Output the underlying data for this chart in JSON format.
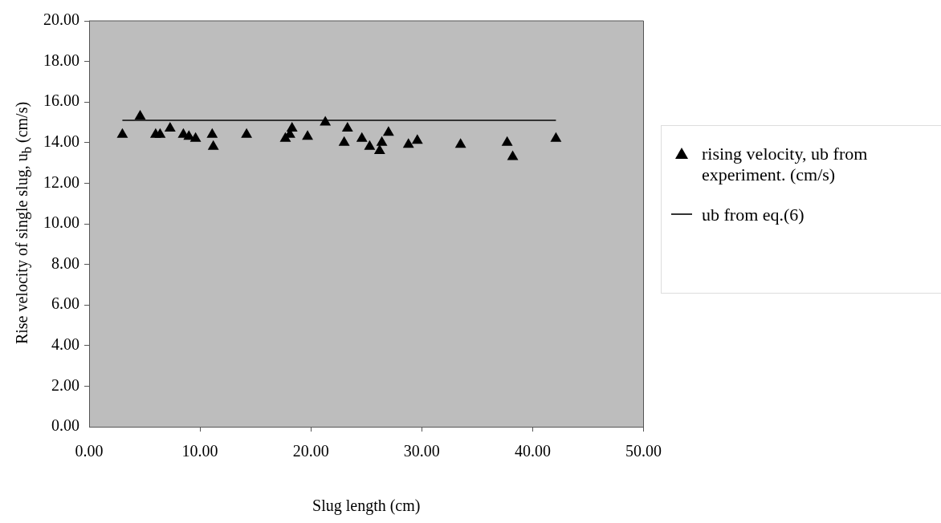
{
  "chart_data": {
    "type": "scatter",
    "xlabel": "Slug length (cm)",
    "ylabel": "Rise velocity of single slug, u$_{b}$ (cm/s)",
    "xlim": [
      0,
      50
    ],
    "xticks": [
      {
        "value": 0,
        "label": "0.00"
      },
      {
        "value": 10,
        "label": "10.00"
      },
      {
        "value": 20,
        "label": "20.00"
      },
      {
        "value": 30,
        "label": "30.00"
      },
      {
        "value": 40,
        "label": "40.00"
      },
      {
        "value": 50,
        "label": "50.00"
      }
    ],
    "ylim": [
      0,
      20
    ],
    "yticks": [
      {
        "value": 0,
        "label": "0.00"
      },
      {
        "value": 2,
        "label": "2.00"
      },
      {
        "value": 4,
        "label": "4.00"
      },
      {
        "value": 6,
        "label": "6.00"
      },
      {
        "value": 8,
        "label": "8.00"
      },
      {
        "value": 10,
        "label": "10.00"
      },
      {
        "value": 12,
        "label": "12.00"
      },
      {
        "value": 14,
        "label": "14.00"
      },
      {
        "value": 16,
        "label": "16.00"
      },
      {
        "value": 18,
        "label": "18.00"
      },
      {
        "value": 20,
        "label": "20.00"
      }
    ],
    "grid": false,
    "legend": "right",
    "series": [
      {
        "name": "rising velocity, ub from experiment. (cm/s)",
        "color": "#000000",
        "marker": "triangle",
        "x": [
          3.0,
          4.6,
          6.0,
          6.4,
          7.3,
          8.5,
          9.0,
          9.6,
          11.1,
          11.2,
          14.2,
          17.7,
          18.1,
          18.3,
          19.7,
          21.3,
          23.0,
          23.3,
          24.6,
          25.3,
          26.2,
          26.4,
          27.0,
          28.8,
          29.6,
          33.5,
          37.7,
          38.2,
          42.1
        ],
        "values": [
          14.4,
          15.3,
          14.4,
          14.4,
          14.7,
          14.4,
          14.3,
          14.2,
          14.4,
          13.8,
          14.4,
          14.2,
          14.4,
          14.7,
          14.3,
          15.0,
          14.0,
          14.7,
          14.2,
          13.8,
          13.6,
          14.0,
          14.5,
          13.9,
          14.1,
          13.9,
          14.0,
          13.3,
          14.2
        ]
      },
      {
        "name": "ub from eq.(6)",
        "type": "line",
        "color": "#333333",
        "marker": "none",
        "x": [
          3.0,
          42.1
        ],
        "values": [
          15.1,
          15.1
        ]
      }
    ]
  }
}
